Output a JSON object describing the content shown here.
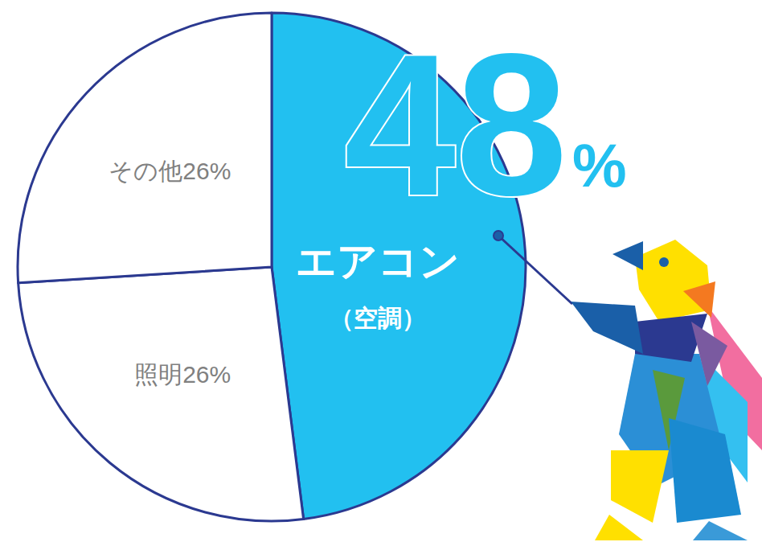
{
  "chart_data": {
    "type": "pie",
    "categories": [
      "エアコン",
      "照明",
      "その他"
    ],
    "values": [
      48,
      26,
      26
    ],
    "value_labels": [
      "48%",
      "26%",
      "26%"
    ],
    "colors": [
      "#22c0f0",
      "#ffffff",
      "#ffffff"
    ],
    "annotations": [
      "（空調）"
    ],
    "data_labels": true
  }
}
